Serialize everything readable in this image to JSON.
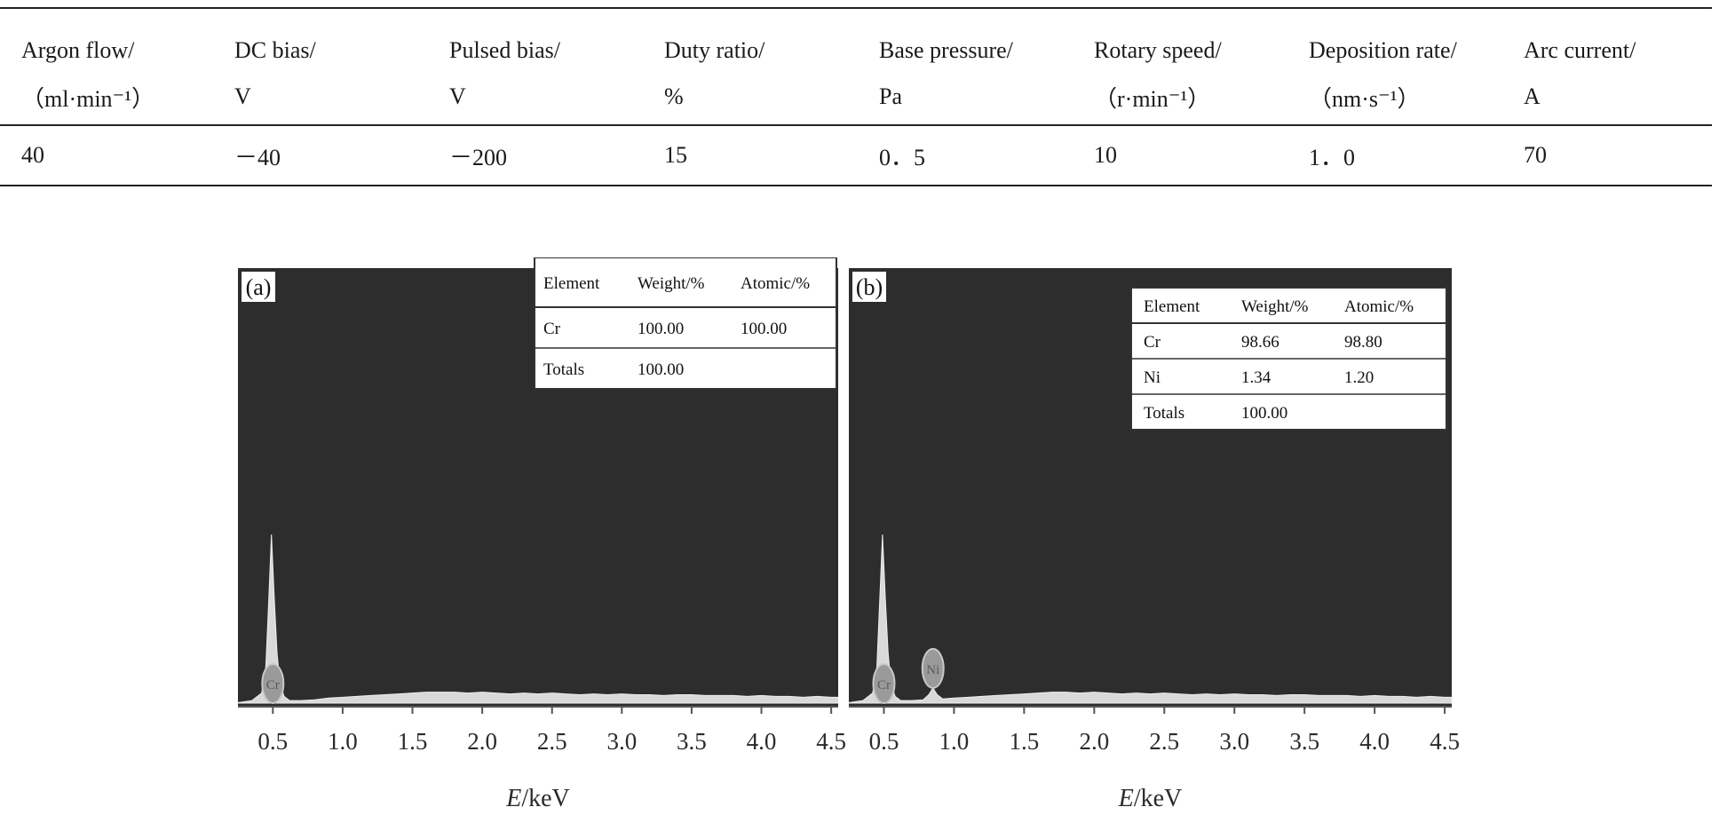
{
  "table": {
    "headers": [
      {
        "label": "Argon flow/",
        "unit": "（ml·min⁻¹）"
      },
      {
        "label": "DC bias/",
        "unit": "V"
      },
      {
        "label": "Pulsed bias/",
        "unit": "V"
      },
      {
        "label": "Duty ratio/",
        "unit": "%"
      },
      {
        "label": "Base pressure/",
        "unit": "Pa"
      },
      {
        "label": "Rotary speed/",
        "unit": "（r·min⁻¹）"
      },
      {
        "label": "Deposition rate/",
        "unit": "（nm·s⁻¹）"
      },
      {
        "label": "Arc current/",
        "unit": "A"
      }
    ],
    "row": [
      "40",
      "－40",
      "－200",
      "15",
      "0．5",
      "10",
      "1．0",
      "70"
    ]
  },
  "chart_data": [
    {
      "type": "area",
      "panel_label": "(a)",
      "xlabel_italic": "E",
      "xlabel_rest": "/keV",
      "xlim": [
        0.25,
        4.55
      ],
      "xticks": [
        "0.5",
        "1.0",
        "1.5",
        "2.0",
        "2.5",
        "3.0",
        "3.5",
        "4.0",
        "4.5"
      ],
      "xtick_values": [
        0.5,
        1.0,
        1.5,
        2.0,
        2.5,
        3.0,
        3.5,
        4.0,
        4.5
      ],
      "spectrum": {
        "x": [
          0.25,
          0.35,
          0.42,
          0.45,
          0.47,
          0.49,
          0.51,
          0.53,
          0.55,
          0.58,
          0.62,
          0.7,
          0.8,
          0.9,
          1.0,
          1.1,
          1.2,
          1.3,
          1.4,
          1.5,
          1.6,
          1.7,
          1.8,
          1.9,
          2.0,
          2.1,
          2.2,
          2.3,
          2.4,
          2.5,
          2.6,
          2.7,
          2.8,
          2.9,
          3.0,
          3.1,
          3.2,
          3.3,
          3.4,
          3.5,
          3.6,
          3.7,
          3.8,
          3.9,
          4.0,
          4.1,
          4.2,
          4.3,
          4.4,
          4.5,
          4.55
        ],
        "y": [
          0.3,
          1.5,
          6,
          22,
          60,
          100,
          62,
          30,
          12,
          4,
          1.5,
          1.5,
          2,
          3,
          3.5,
          4,
          4.5,
          5,
          5.5,
          6,
          6.5,
          6.5,
          6.5,
          6,
          6.5,
          6,
          5.5,
          6,
          5.5,
          6,
          5.5,
          5,
          5.5,
          5,
          5.5,
          5,
          5,
          4.5,
          5,
          5,
          4.5,
          4.5,
          4.5,
          4,
          4.5,
          4,
          4,
          3.5,
          4,
          3.5,
          3.5
        ]
      },
      "peaks": [
        {
          "element": "Cr",
          "x": 0.5
        }
      ],
      "inset": {
        "headers": [
          "Element",
          "Weight/%",
          "Atomic/%"
        ],
        "rows": [
          [
            "Cr",
            "100.00",
            "100.00"
          ],
          [
            "Totals",
            "100.00",
            ""
          ]
        ]
      },
      "colors": {
        "background": "#2d2d2d",
        "spectrum": "#d9d9d9"
      }
    },
    {
      "type": "area",
      "panel_label": "(b)",
      "xlabel_italic": "E",
      "xlabel_rest": "/keV",
      "xlim": [
        0.25,
        4.55
      ],
      "xticks": [
        "0.5",
        "1.0",
        "1.5",
        "2.0",
        "2.5",
        "3.0",
        "3.5",
        "4.0",
        "4.5"
      ],
      "xtick_values": [
        0.5,
        1.0,
        1.5,
        2.0,
        2.5,
        3.0,
        3.5,
        4.0,
        4.5
      ],
      "spectrum": {
        "x": [
          0.25,
          0.35,
          0.42,
          0.45,
          0.47,
          0.49,
          0.51,
          0.53,
          0.55,
          0.58,
          0.62,
          0.7,
          0.78,
          0.82,
          0.85,
          0.88,
          0.92,
          1.0,
          1.1,
          1.2,
          1.3,
          1.4,
          1.5,
          1.6,
          1.7,
          1.8,
          1.9,
          2.0,
          2.1,
          2.2,
          2.3,
          2.4,
          2.5,
          2.6,
          2.7,
          2.8,
          2.9,
          3.0,
          3.1,
          3.2,
          3.3,
          3.4,
          3.5,
          3.6,
          3.7,
          3.8,
          3.9,
          4.0,
          4.1,
          4.2,
          4.3,
          4.4,
          4.5,
          4.55
        ],
        "y": [
          0.3,
          1.5,
          6,
          22,
          60,
          100,
          62,
          30,
          12,
          4,
          1.5,
          1.5,
          2,
          5,
          9,
          5,
          2.5,
          3,
          3.5,
          4,
          4.5,
          5,
          5.5,
          6,
          6.5,
          6.5,
          6,
          6.5,
          6,
          5.5,
          6,
          5.5,
          6,
          5.5,
          5,
          5.5,
          5,
          5.5,
          5,
          5,
          4.5,
          5,
          5,
          4.5,
          4.5,
          4.5,
          4,
          4.5,
          4,
          4,
          3.5,
          4,
          3.5,
          3.5
        ]
      },
      "peaks": [
        {
          "element": "Cr",
          "x": 0.5
        },
        {
          "element": "Ni",
          "x": 0.85
        }
      ],
      "inset": {
        "headers": [
          "Element",
          "Weight/%",
          "Atomic/%"
        ],
        "rows": [
          [
            "Cr",
            "98.66",
            "98.80"
          ],
          [
            "Ni",
            "1.34",
            "1.20"
          ],
          [
            "Totals",
            "100.00",
            ""
          ]
        ]
      },
      "colors": {
        "background": "#2d2d2d",
        "spectrum": "#d9d9d9"
      }
    }
  ]
}
